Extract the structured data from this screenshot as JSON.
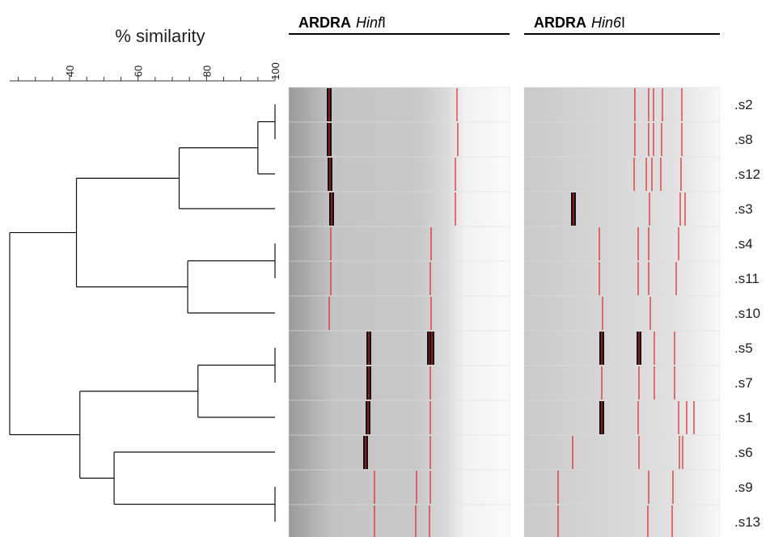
{
  "chart_data": {
    "type": "dendrogram",
    "xlabel": "% similarity",
    "xlim": [
      22.5,
      100
    ],
    "xticks": [
      40,
      60,
      80,
      100
    ],
    "xminorticks": [
      25,
      30,
      35,
      45,
      50,
      55,
      65,
      70,
      75,
      85,
      90,
      95
    ],
    "leaves": [
      ".s2",
      ".s8",
      ".s12",
      ".s3",
      ".s4",
      ".s11",
      ".s10",
      ".s5",
      ".s7",
      ".s1",
      ".s6",
      ".s9",
      ".s13"
    ],
    "merges": [
      {
        "children": [
          0,
          1
        ],
        "similarity": 100
      },
      {
        "children": [
          13,
          2
        ],
        "similarity": 95
      },
      {
        "children": [
          14,
          3
        ],
        "similarity": 72
      },
      {
        "children": [
          4,
          5
        ],
        "similarity": 100
      },
      {
        "children": [
          16,
          6
        ],
        "similarity": 74.5
      },
      {
        "children": [
          15,
          17
        ],
        "similarity": 42
      },
      {
        "children": [
          7,
          8
        ],
        "similarity": 100
      },
      {
        "children": [
          19,
          9
        ],
        "similarity": 77.5
      },
      {
        "children": [
          11,
          12
        ],
        "similarity": 100
      },
      {
        "children": [
          10,
          21
        ],
        "similarity": 53
      },
      {
        "children": [
          20,
          22
        ],
        "similarity": 43
      },
      {
        "children": [
          18,
          23
        ],
        "similarity": 22.5
      }
    ],
    "gels": [
      {
        "method": "ARDRA",
        "enzyme": "Hinf",
        "suffix": "I"
      },
      {
        "method": "ARDRA",
        "enzyme": "Hin6",
        "suffix": "I"
      }
    ]
  }
}
